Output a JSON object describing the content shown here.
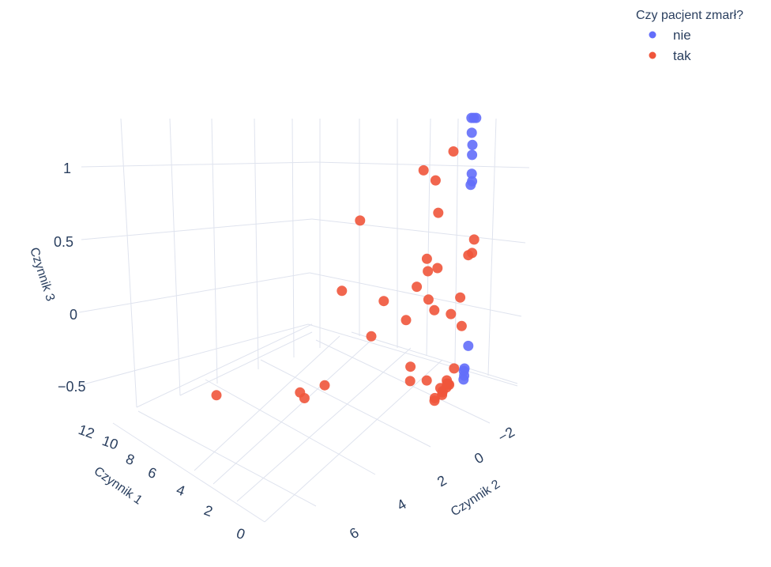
{
  "chart_data": {
    "type": "scatter3d",
    "legend": {
      "title": "Czy pacjent zmarł?",
      "placement": "top-right",
      "entries": [
        {
          "name": "nie",
          "color": "#636efa"
        },
        {
          "name": "tak",
          "color": "#ef553b"
        }
      ]
    },
    "axes": {
      "x": {
        "title": "Czynnik 1",
        "ticks": [
          "0",
          "2",
          "4",
          "6",
          "8",
          "10",
          "12"
        ]
      },
      "y": {
        "title": "Czynnik 2",
        "ticks": [
          "−2",
          "0",
          "2",
          "4",
          "6"
        ]
      },
      "z": {
        "title": "Czynnik 3",
        "ticks": [
          "−0.5",
          "0",
          "0.5",
          "1"
        ]
      }
    },
    "grid": true,
    "series": [
      {
        "name": "nie",
        "color": "#636efa",
        "points": [
          [
            0.2,
            -1.0,
            1.3
          ],
          [
            0.4,
            -1.1,
            1.3
          ],
          [
            0.6,
            -1.2,
            1.3
          ],
          [
            0.5,
            -1.1,
            1.2
          ],
          [
            0.3,
            -0.9,
            1.12
          ],
          [
            0.4,
            -1.0,
            1.05
          ],
          [
            0.5,
            -1.1,
            0.92
          ],
          [
            0.4,
            -1.0,
            0.87
          ],
          [
            0.3,
            -0.8,
            0.85
          ],
          [
            0.5,
            -0.9,
            -0.25
          ],
          [
            0.6,
            -0.8,
            -0.4
          ],
          [
            0.7,
            -0.9,
            -0.45
          ],
          [
            0.8,
            -1.0,
            -0.42
          ],
          [
            0.9,
            -1.1,
            -0.48
          ]
        ]
      },
      {
        "name": "tak",
        "color": "#ef553b",
        "points": [
          [
            0.8,
            -0.4,
            1.1
          ],
          [
            2.0,
            -0.1,
            1.0
          ],
          [
            1.5,
            -0.2,
            0.92
          ],
          [
            4.5,
            0.6,
            0.72
          ],
          [
            1.2,
            0.0,
            0.7
          ],
          [
            0.3,
            -1.0,
            0.47
          ],
          [
            0.4,
            -1.0,
            0.38
          ],
          [
            0.5,
            -0.9,
            0.37
          ],
          [
            1.5,
            0.3,
            0.4
          ],
          [
            1.2,
            0.6,
            0.32
          ],
          [
            0.9,
            0.4,
            0.33
          ],
          [
            4.2,
            2.0,
            0.28
          ],
          [
            1.4,
            1.0,
            0.23
          ],
          [
            2.5,
            1.6,
            0.17
          ],
          [
            1.0,
            0.8,
            0.13
          ],
          [
            0.3,
            -0.2,
            0.1
          ],
          [
            0.8,
            0.7,
            0.05
          ],
          [
            1.5,
            1.5,
            0.02
          ],
          [
            0.5,
            0.1,
            0.0
          ],
          [
            2.6,
            2.2,
            -0.05
          ],
          [
            0.4,
            -0.4,
            -0.1
          ],
          [
            1.2,
            1.6,
            -0.3
          ],
          [
            6.5,
            6.5,
            -0.25
          ],
          [
            4.8,
            3.7,
            -0.35
          ],
          [
            0.6,
            -0.2,
            -0.38
          ],
          [
            4.5,
            3.8,
            -0.39
          ],
          [
            3.6,
            3.7,
            -0.32
          ],
          [
            1.3,
            1.5,
            -0.4
          ],
          [
            1.0,
            0.9,
            -0.42
          ],
          [
            0.5,
            0.2,
            -0.48
          ],
          [
            0.6,
            0.2,
            -0.47
          ],
          [
            0.7,
            0.1,
            -0.45
          ],
          [
            0.8,
            0.0,
            -0.5
          ],
          [
            0.9,
            0.1,
            -0.52
          ],
          [
            1.0,
            0.0,
            -0.53
          ],
          [
            1.1,
            -0.1,
            -0.55
          ],
          [
            1.2,
            0.2,
            -0.56
          ],
          [
            1.3,
            0.1,
            -0.58
          ],
          [
            0.8,
            -0.1,
            -0.48
          ],
          [
            1.1,
            0.0,
            -0.5
          ]
        ]
      }
    ]
  }
}
